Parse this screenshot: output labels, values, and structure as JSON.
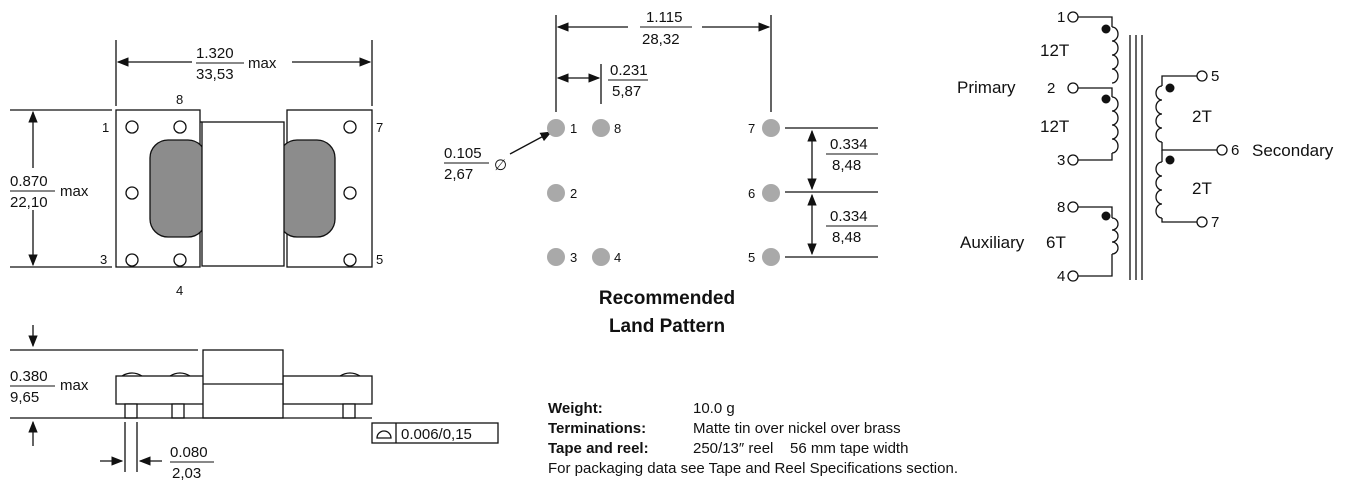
{
  "top_view": {
    "width": {
      "in": "1.320",
      "mm": "33,53",
      "suffix": "max"
    },
    "height": {
      "in": "0.870",
      "mm": "22,10",
      "suffix": "max"
    },
    "pins": [
      "1",
      "8",
      "7",
      "3",
      "4",
      "5"
    ]
  },
  "side_view": {
    "height": {
      "in": "0.380",
      "mm": "9,65",
      "suffix": "max"
    },
    "pin_width": {
      "in": "0.080",
      "mm": "2,03"
    },
    "coplanarity": "0.006/0,15"
  },
  "land_pattern": {
    "span": {
      "in": "1.115",
      "mm": "28,32"
    },
    "pitch": {
      "in": "0.231",
      "mm": "5,87"
    },
    "pad_dia": {
      "in": "0.105",
      "mm": "2,67",
      "symbol": "∅"
    },
    "row_pitch_1": {
      "in": "0.334",
      "mm": "8,48"
    },
    "row_pitch_2": {
      "in": "0.334",
      "mm": "8,48"
    },
    "pad_labels": [
      "1",
      "8",
      "7",
      "2",
      "6",
      "3",
      "4",
      "5"
    ],
    "caption_line1": "Recommended",
    "caption_line2": "Land Pattern"
  },
  "schematic": {
    "primary_label": "Primary",
    "secondary_label": "Secondary",
    "auxiliary_label": "Auxiliary",
    "turns_primary_1": "12T",
    "turns_primary_2": "12T",
    "turns_aux": "6T",
    "turns_sec_1": "2T",
    "turns_sec_2": "2T",
    "pins": [
      "1",
      "2",
      "3",
      "8",
      "4",
      "5",
      "6",
      "7"
    ]
  },
  "specs": {
    "weight_label": "Weight:",
    "weight_value": "10.0 g",
    "terminations_label": "Terminations:",
    "terminations_value": "Matte tin over nickel over brass",
    "tape_label": "Tape and reel:",
    "tape_value": "250/13″ reel    56 mm tape width",
    "note": "For packaging data see Tape and Reel Specifications section."
  },
  "colors": {
    "core_gray": "#8c8c8c",
    "pad_gray": "#a9a9a9",
    "line": "#111111"
  }
}
